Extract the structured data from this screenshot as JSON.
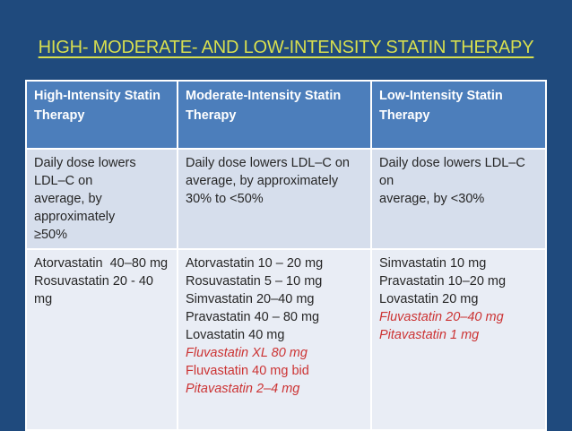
{
  "title": "HIGH- MODERATE- AND LOW-INTENSITY STATIN THERAPY",
  "colors": {
    "background": "#1F4A7D",
    "title_text": "#D8DF4E",
    "header_bg": "#4C7EBB",
    "header_text": "#FFFFFF",
    "band_row_bg": "#D6DEEC",
    "light_row_bg": "#E9EDF5",
    "body_text": "#262626",
    "highlight_red": "#CC3333",
    "table_border": "#FFFFFF"
  },
  "table": {
    "columns": [
      {
        "header_lines": [
          {
            "text": "High-Intensity Statin",
            "style": "normal"
          },
          {
            "text": "Therapy",
            "style": "normal"
          }
        ],
        "ldl_lines": [
          {
            "text": "Daily dose lowers LDL–C on",
            "style": "normal"
          },
          {
            "text": "average, by approximately",
            "style": "normal"
          },
          {
            "text": "≥50%",
            "style": "normal"
          }
        ],
        "drug_lines": [
          {
            "text": "Atorvastatin  40–80 mg",
            "style": "normal"
          },
          {
            "text": "Rosuvastatin 20 - 40 mg",
            "style": "normal"
          }
        ]
      },
      {
        "header_lines": [
          {
            "text": "Moderate-Intensity Statin",
            "style": "normal"
          },
          {
            "text": "Therapy",
            "style": "normal"
          }
        ],
        "ldl_lines": [
          {
            "text": "Daily dose lowers LDL–C on",
            "style": "normal"
          },
          {
            "text": "average, by approximately",
            "style": "normal"
          },
          {
            "text": "30% to <50%",
            "style": "normal"
          }
        ],
        "drug_lines": [
          {
            "text": "Atorvastatin 10 – 20 mg",
            "style": "normal"
          },
          {
            "text": "Rosuvastatin 5 – 10 mg",
            "style": "normal"
          },
          {
            "text": "Simvastatin 20–40 mg",
            "style": "normal"
          },
          {
            "text": "Pravastatin 40 – 80 mg",
            "style": "normal"
          },
          {
            "text": "Lovastatin 40 mg",
            "style": "normal"
          },
          {
            "text": "Fluvastatin XL 80 mg",
            "style": "red-italic"
          },
          {
            "text": "Fluvastatin 40 mg bid",
            "style": "red"
          },
          {
            "text": "Pitavastatin 2–4 mg",
            "style": "red-italic"
          }
        ]
      },
      {
        "header_lines": [
          {
            "text": "Low-Intensity Statin",
            "style": "normal"
          },
          {
            "text": "Therapy",
            "style": "normal"
          }
        ],
        "ldl_lines": [
          {
            "text": "Daily dose lowers LDL–C on",
            "style": "normal"
          },
          {
            "text": "average, by <30%",
            "style": "normal"
          }
        ],
        "drug_lines": [
          {
            "text": "Simvastatin 10 mg",
            "style": "normal"
          },
          {
            "text": "Pravastatin 10–20 mg",
            "style": "normal"
          },
          {
            "text": "Lovastatin 20 mg",
            "style": "normal"
          },
          {
            "text": "Fluvastatin 20–40 mg",
            "style": "red-italic"
          },
          {
            "text": "Pitavastatin 1 mg",
            "style": "red-italic"
          }
        ]
      }
    ]
  }
}
